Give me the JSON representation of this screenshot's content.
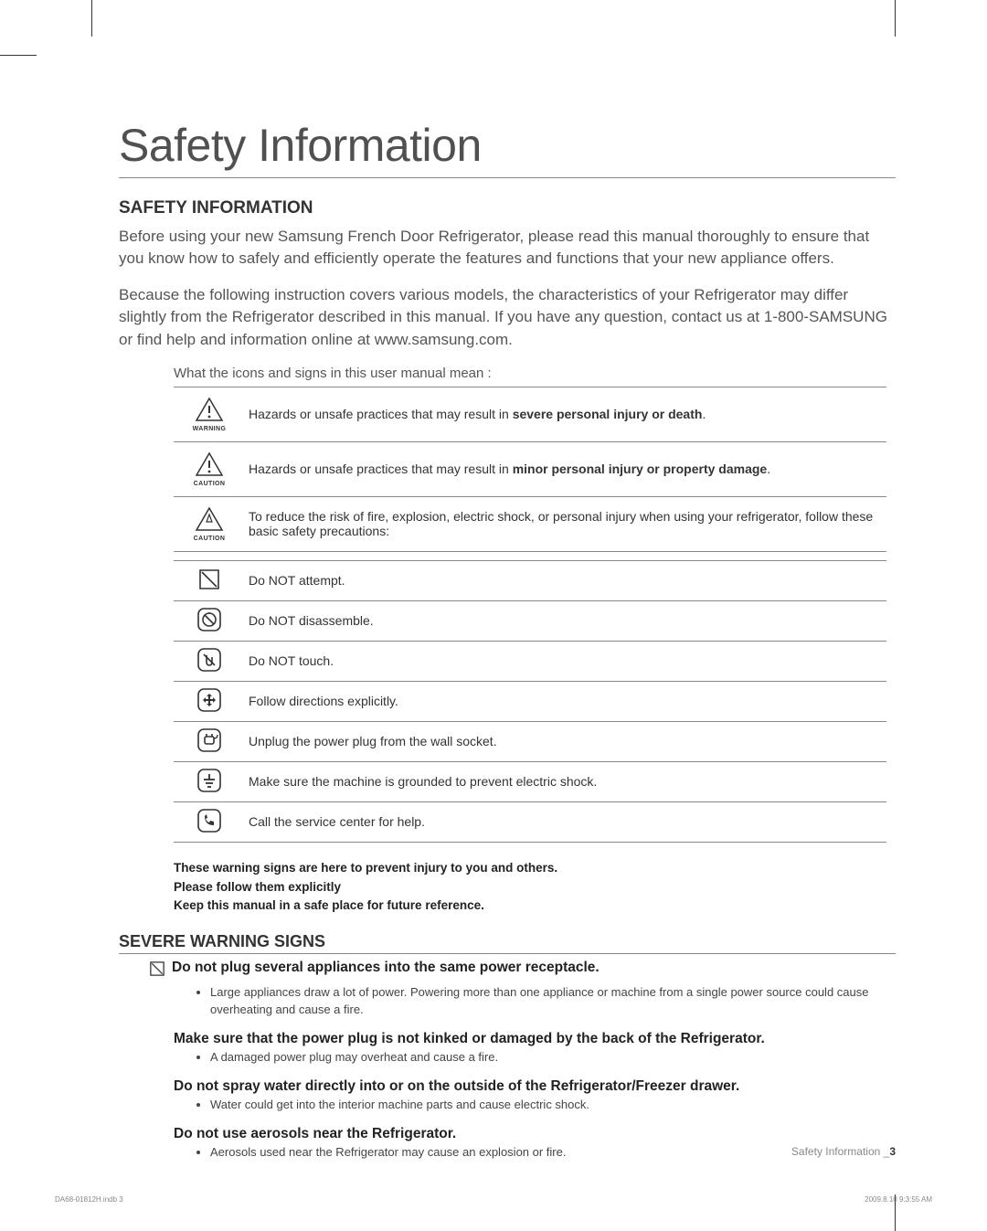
{
  "page": {
    "main_title": "Safety Information",
    "section1_title": "SAFETY INFORMATION",
    "intro1": "Before using your new Samsung French Door Refrigerator, please read this manual thoroughly to ensure that you know how to safely and efficiently operate the features and functions that your new appliance offers.",
    "intro2": "Because the following instruction covers various models, the characteristics of your Refrigerator may differ slightly from the Refrigerator described in this manual. If you have any question, contact us at 1-800-SAMSUNG or find help and information online at www.samsung.com.",
    "icons_subhead": "What the icons and signs in this user manual mean :",
    "icons_group1": [
      {
        "icon": "warning",
        "label": "WARNING",
        "desc_pre": "Hazards or unsafe practices that may result in ",
        "desc_bold": "severe personal injury or death",
        "desc_post": "."
      },
      {
        "icon": "caution",
        "label": "CAUTION",
        "desc_pre": "Hazards or unsafe practices that may result in ",
        "desc_bold": "minor personal injury or property damage",
        "desc_post": "."
      },
      {
        "icon": "caution2",
        "label": "CAUTION",
        "desc_pre": "To reduce the risk of fire, explosion, electric shock, or personal injury when using your refrigerator, follow these basic safety precautions:",
        "desc_bold": "",
        "desc_post": ""
      }
    ],
    "icons_group2": [
      {
        "icon": "no-attempt",
        "desc": "Do NOT attempt."
      },
      {
        "icon": "no-disassemble",
        "desc": "Do NOT disassemble."
      },
      {
        "icon": "no-touch",
        "desc": "Do NOT touch."
      },
      {
        "icon": "follow",
        "desc": "Follow directions explicitly."
      },
      {
        "icon": "unplug",
        "desc": "Unplug the power plug from the wall socket."
      },
      {
        "icon": "ground",
        "desc": "Make sure the machine is grounded to prevent electric shock."
      },
      {
        "icon": "call-service",
        "desc": "Call the service center for help."
      }
    ],
    "warning_lines": [
      "These warning signs are here to prevent injury to you and others.",
      "Please follow them explicitly",
      "Keep this manual in a safe place for future reference."
    ],
    "section2_title": "SEVERE WARNING SIGNS",
    "severe_items": [
      {
        "show_icon": true,
        "head": "Do not plug several appliances into the same power receptacle.",
        "bullets": [
          "Large appliances draw a lot of power. Powering more than one appliance or machine from a single power source could cause overheating and cause a fire."
        ]
      },
      {
        "show_icon": false,
        "head": "Make sure that the power plug is not kinked or damaged by the back of the Refrigerator.",
        "bullets": [
          "A damaged power plug may overheat and cause a fire."
        ]
      },
      {
        "show_icon": false,
        "head": "Do not spray water directly into or on the outside of the Refrigerator/Freezer drawer.",
        "bullets": [
          "Water could get into the interior machine parts and cause electric shock."
        ]
      },
      {
        "show_icon": false,
        "head": "Do not use aerosols near the Refrigerator.",
        "bullets": [
          "Aerosols used near the Refrigerator may cause an explosion or fire."
        ]
      }
    ],
    "footer": {
      "section_label": "Safety Information _",
      "page_num": "3",
      "indb": "DA68-01812H.indb   3",
      "timestamp": "2009.8.10   9:3:55 AM"
    }
  },
  "style": {
    "text_color": "#333333",
    "light_text": "#555555",
    "rule_color": "#888888",
    "bg": "#ffffff",
    "title_fontsize": 50,
    "section_fontsize": 19,
    "body_fontsize": 17,
    "table_fontsize": 14,
    "bullet_fontsize": 13
  }
}
